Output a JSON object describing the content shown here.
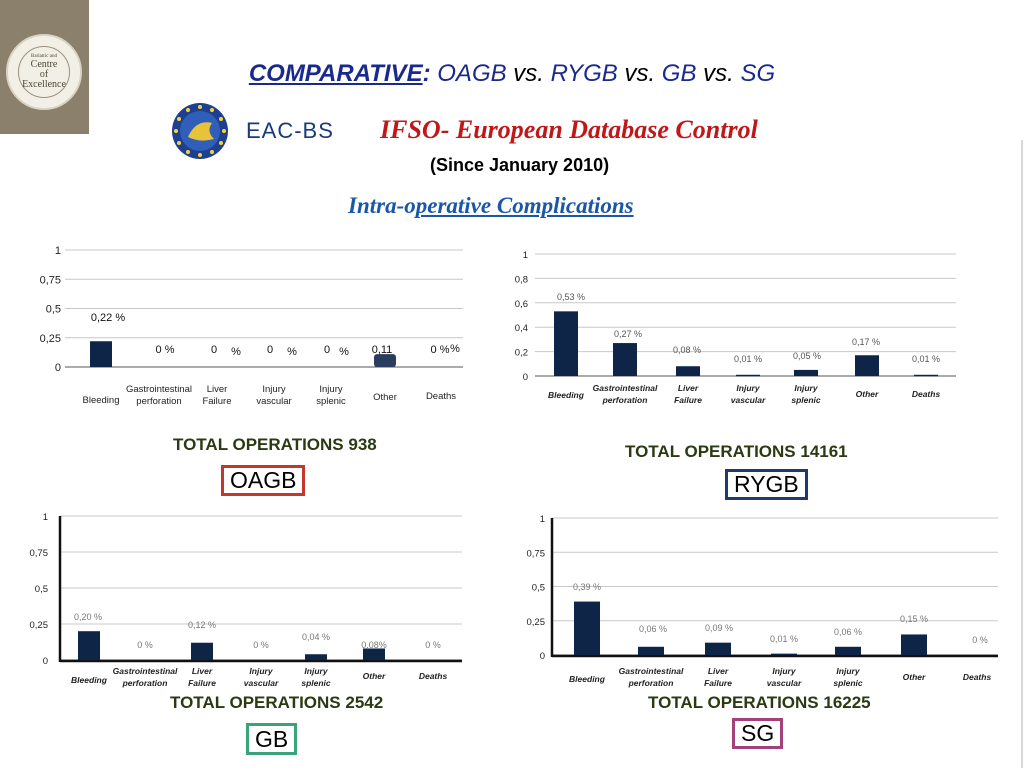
{
  "header": {
    "badge_lines": [
      "Bariatric and",
      "Centre",
      "of",
      "Excellence"
    ],
    "title_parts": {
      "comparative": "COMPARATIVE",
      "colon": ":",
      "oagb": "OAGB",
      "vs1": "vs.",
      "rygb": "RYGB",
      "vs2": "vs.",
      "gb": "GB",
      "vs3": "vs.",
      "sg": "SG"
    },
    "eac_text": "EAC-BS",
    "ifso_title": "IFSO- European Database Control",
    "since": "(Since January 2010)",
    "section_prefix": "Intra-o",
    "section_rest": "perative Complications"
  },
  "colors": {
    "bar": "#0f2548",
    "title_blue": "#1a2a8c",
    "ifso_red": "#c01818",
    "section_blue": "#1a57a8",
    "total_text": "#2b3a12",
    "oagb_border": "#c0392b",
    "rygb_border": "#1f3a6e",
    "gb_border": "#3aa37a",
    "sg_border": "#a4407a"
  },
  "chart_data": [
    {
      "type": "bar",
      "procedure": "OAGB",
      "categories": [
        "Bleeding",
        "Gastrointestinal perforation",
        "Liver Failure",
        "Injury vascular",
        "Injury splenic",
        "Other",
        "Deaths"
      ],
      "values": [
        0.22,
        0,
        0,
        0,
        0,
        0.11,
        0
      ],
      "data_labels": [
        "0,22 %",
        "0  %",
        "0",
        "0",
        "0",
        "0,11",
        "0  %"
      ],
      "extra_pct_labels": [
        "%",
        "%",
        "%",
        "%"
      ],
      "y_ticks": [
        "0",
        "0,25",
        "0,5",
        "0,75",
        "1"
      ],
      "ylim": [
        0,
        1
      ],
      "grid": true,
      "total": "TOTAL  OPERATIONS 938",
      "label": "OAGB"
    },
    {
      "type": "bar",
      "procedure": "RYGB",
      "categories": [
        "Bleeding",
        "Gastrointestinal perforation",
        "Liver Failure",
        "Injury vascular",
        "Injury splenic",
        "Other",
        "Deaths"
      ],
      "values": [
        0.53,
        0.27,
        0.08,
        0.01,
        0.05,
        0.17,
        0.01
      ],
      "data_labels": [
        "0,53 %",
        "0,27 %",
        "0,08 %",
        "0,01 %",
        "0,05 %",
        "0,17 %",
        "0,01 %"
      ],
      "y_ticks": [
        "0",
        "0,2",
        "0,4",
        "0,6",
        "0,8",
        "1"
      ],
      "ylim": [
        0,
        1
      ],
      "grid": true,
      "total": "TOTAL  OPERATIONS 14161",
      "label": "RYGB"
    },
    {
      "type": "bar",
      "procedure": "GB",
      "categories": [
        "Bleeding",
        "Gastrointestinal perforation",
        "Liver Failure",
        "Injury vascular",
        "Injury splenic",
        "Other",
        "Deaths"
      ],
      "values": [
        0.2,
        0,
        0.12,
        0,
        0.04,
        0.08,
        0
      ],
      "data_labels": [
        "0,20 %",
        "0 %",
        "0,12 %",
        "0 %",
        "0,04 %",
        "0,08%",
        "0 %"
      ],
      "y_ticks": [
        "0",
        "0,25",
        "0,5",
        "0,75",
        "1"
      ],
      "ylim": [
        0,
        1
      ],
      "grid": true,
      "total": "TOTAL  OPERATIONS 2542",
      "label": "GB"
    },
    {
      "type": "bar",
      "procedure": "SG",
      "categories": [
        "Bleeding",
        "Gastrointestinal perforation",
        "Liver Failure",
        "Injury vascular",
        "Injury splenic",
        "Other",
        "Deaths"
      ],
      "values": [
        0.39,
        0.06,
        0.09,
        0.01,
        0.06,
        0.15,
        0
      ],
      "data_labels": [
        "0,39 %",
        "0,06 %",
        "0,09 %",
        "0,01 %",
        "0,06 %",
        "0,15 %",
        "0 %"
      ],
      "y_ticks": [
        "0",
        "0,25",
        "0,5",
        "0,75",
        "1"
      ],
      "ylim": [
        0,
        1
      ],
      "grid": true,
      "total": "TOTAL  OPERATIONS 16225",
      "label": "SG"
    }
  ]
}
